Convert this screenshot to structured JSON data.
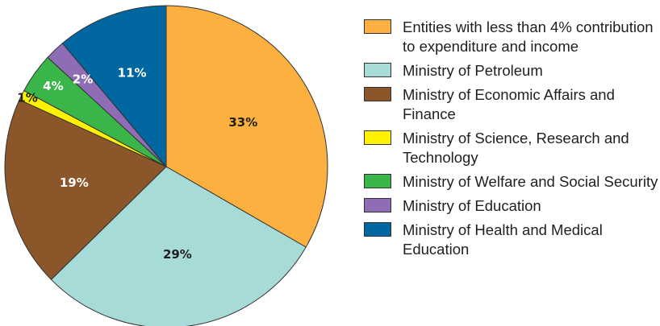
{
  "chart_data": {
    "type": "pie",
    "title": "",
    "start_angle_deg": 0,
    "direction": "clockwise",
    "slices": [
      {
        "label": "Entities with less than 4% contribution to expenditure and income",
        "value": 33,
        "display": "33%",
        "color": "#FBB040",
        "label_color": "#1f1f1f"
      },
      {
        "label": "Ministry of Petroleum",
        "value": 29,
        "display": "29%",
        "color": "#A7DBD8",
        "label_color": "#1f1f1f"
      },
      {
        "label": "Ministry of Economic Affairs and Finance",
        "value": 19,
        "display": "19%",
        "color": "#8B572A",
        "label_color": "#ffffff"
      },
      {
        "label": "Ministry of Science, Research and Technology",
        "value": 1,
        "display": "1%",
        "color": "#FFF200",
        "label_color": "#1f1f1f"
      },
      {
        "label": "Ministry of Welfare and Social Security",
        "value": 4,
        "display": "4%",
        "color": "#39B54A",
        "label_color": "#ffffff"
      },
      {
        "label": "Ministry of Education",
        "value": 2,
        "display": "2%",
        "color": "#8E6DB5",
        "label_color": "#ffffff"
      },
      {
        "label": "Ministry of Health and Medical Education",
        "value": 11,
        "display": "11%",
        "color": "#0067A0",
        "label_color": "#ffffff"
      }
    ],
    "legend_position": "right"
  }
}
